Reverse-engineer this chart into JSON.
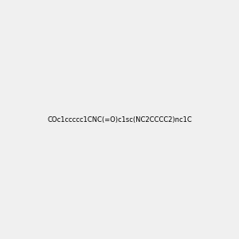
{
  "smiles": "COc1ccccc1CNC(=O)c1sc(NC2CCCC2)nc1C",
  "img_size": [
    300,
    300
  ],
  "background_color": "#f0f0f0",
  "bond_color": "#000000",
  "atom_colors": {
    "N": "#0000ff",
    "O": "#ff0000",
    "S": "#cccc00"
  },
  "title": ""
}
